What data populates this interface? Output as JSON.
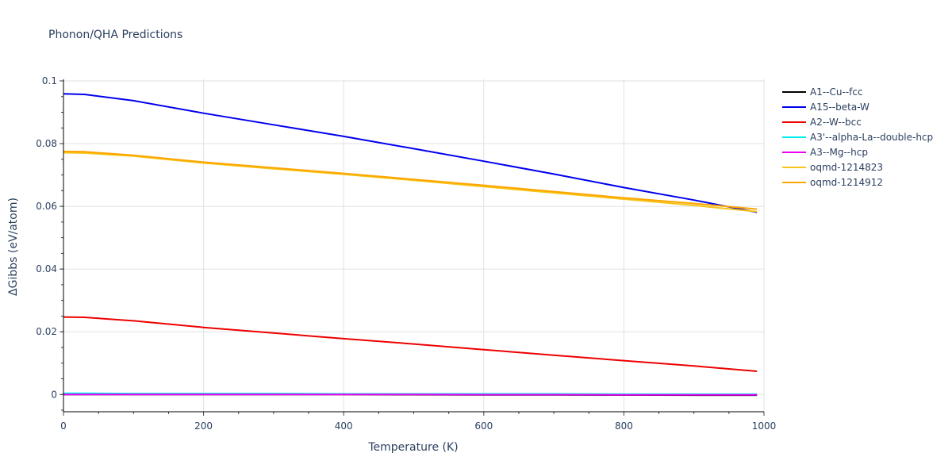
{
  "chart": {
    "title": "Phonon/QHA Predictions"
  },
  "chart_data": {
    "type": "line",
    "title": "Phonon/QHA Predictions",
    "xlabel": "Temperature (K)",
    "ylabel": "ΔGibbs (eV/atom)",
    "xlim": [
      0,
      1000
    ],
    "ylim": [
      -0.0055,
      0.1005
    ],
    "x_ticks": [
      0,
      200,
      400,
      600,
      800,
      1000
    ],
    "x_tick_labels": [
      "0",
      "200",
      "400",
      "600",
      "800",
      "1000"
    ],
    "y_ticks": [
      0,
      0.02,
      0.04,
      0.06,
      0.08,
      0.1
    ],
    "y_tick_labels": [
      "0",
      "0.02",
      "0.04",
      "0.06",
      "0.08",
      "0.1"
    ],
    "grid": true,
    "legend_position": "right",
    "x": [
      0,
      30,
      100,
      200,
      300,
      400,
      500,
      600,
      700,
      800,
      900,
      990
    ],
    "series": [
      {
        "name": "A1--Cu--fcc",
        "color": "#000000",
        "values": [
          0,
          0,
          0,
          0,
          0,
          0,
          -5e-05,
          -0.0001,
          -0.0001,
          -0.00015,
          -0.0002,
          -0.0002
        ]
      },
      {
        "name": "A15--beta-W",
        "color": "#0000ee",
        "values": [
          0.0959,
          0.0957,
          0.0937,
          0.0897,
          0.086,
          0.0823,
          0.0784,
          0.0744,
          0.0703,
          0.066,
          0.062,
          0.0581
        ]
      },
      {
        "name": "A2--W--bcc",
        "color": "#ee0000",
        "values": [
          0.0247,
          0.0246,
          0.0235,
          0.0214,
          0.0196,
          0.0178,
          0.0161,
          0.0143,
          0.0125,
          0.0108,
          0.0091,
          0.0074
        ]
      },
      {
        "name": "A3'--alpha-La--double-hcp",
        "color": "#00eeee",
        "values": [
          0.0004,
          0.0004,
          0.0003,
          0.0003,
          0.0003,
          0.0002,
          0.0002,
          0.0002,
          0.0002,
          0.0001,
          0.0001,
          0.0001
        ]
      },
      {
        "name": "A3--Mg--hcp",
        "color": "#ee00ee",
        "values": [
          0,
          0,
          0,
          0,
          0,
          0,
          0,
          -5e-05,
          -5e-05,
          -0.0001,
          -0.0001,
          -0.0001
        ]
      },
      {
        "name": "oqmd-1214823",
        "color": "#f5c518",
        "values": [
          0.0771,
          0.077,
          0.076,
          0.0738,
          0.072,
          0.0702,
          0.0683,
          0.0663,
          0.0643,
          0.0623,
          0.0603,
          0.0583
        ]
      },
      {
        "name": "oqmd-1214912",
        "color": "#ffa500",
        "values": [
          0.0775,
          0.0774,
          0.0763,
          0.0741,
          0.0723,
          0.0705,
          0.0686,
          0.0667,
          0.0647,
          0.0627,
          0.0609,
          0.0591
        ]
      }
    ]
  }
}
